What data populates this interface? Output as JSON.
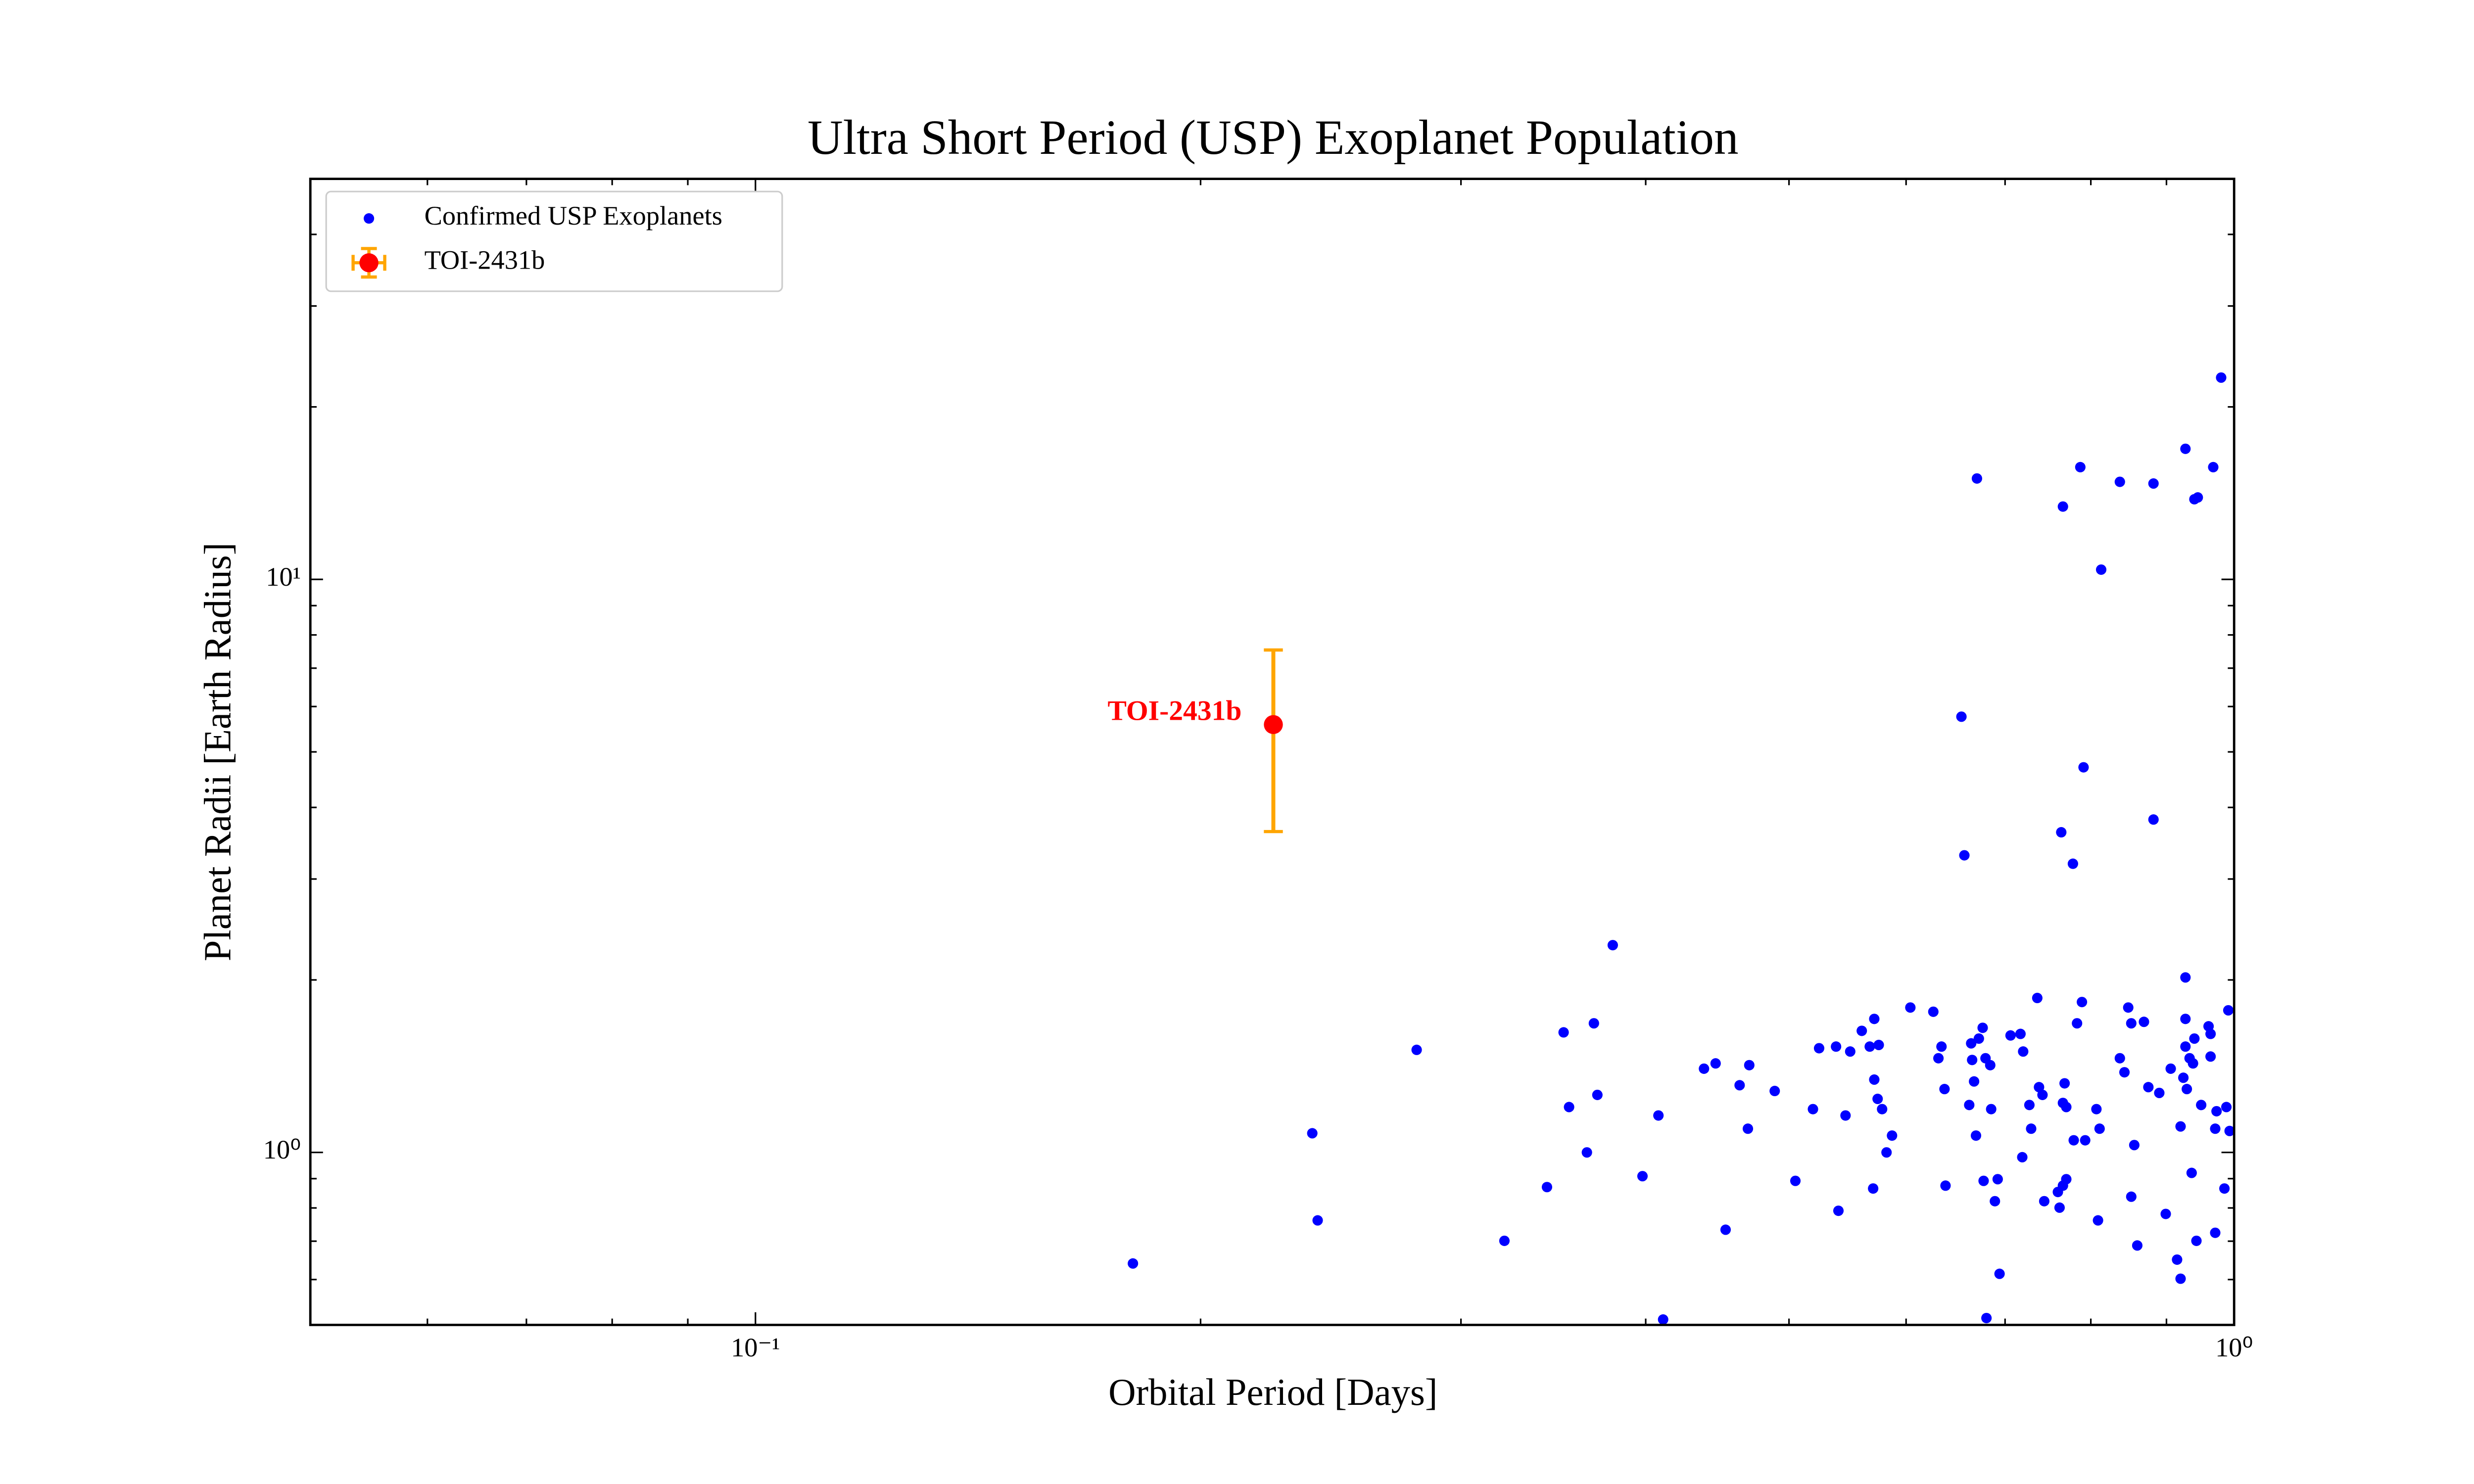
{
  "chart_data": {
    "type": "scatter",
    "title": "Ultra Short Period (USP) Exoplanet Population",
    "x_label": "Orbital Period [Days]",
    "y_label": "Planet Radii [Earth Radius]",
    "xscale": "log",
    "yscale": "log",
    "xlim": [
      0.05,
      1
    ],
    "ylim": [
      0.5,
      50
    ],
    "xticks": [
      {
        "value": 0.1,
        "label": "10⁻¹"
      },
      {
        "value": 1,
        "label": "10⁰"
      }
    ],
    "yticks": [
      {
        "value": 1,
        "label": "10⁰"
      },
      {
        "value": 10,
        "label": "10¹"
      }
    ],
    "xminorticks": [
      0.06,
      0.07,
      0.08,
      0.09,
      0.2,
      0.3,
      0.4,
      0.5,
      0.6,
      0.7,
      0.8,
      0.9
    ],
    "yminorticks": [
      0.6,
      0.7,
      0.8,
      0.9,
      2,
      3,
      4,
      5,
      6,
      7,
      8,
      9,
      20,
      30,
      40
    ],
    "legend": "upper left",
    "series": [
      {
        "name": "Confirmed USP Exoplanets",
        "color": "#0000ff",
        "x": [
          0.18,
          0.238,
          0.24,
          0.28,
          0.321,
          0.343,
          0.352,
          0.355,
          0.365,
          0.369,
          0.371,
          0.38,
          0.398,
          0.408,
          0.411,
          0.438,
          0.446,
          0.453,
          0.463,
          0.469,
          0.47,
          0.489,
          0.505,
          0.519,
          0.524,
          0.538,
          0.54,
          0.546,
          0.55,
          0.56,
          0.567,
          0.57,
          0.571,
          0.571,
          0.574,
          0.575,
          0.578,
          0.582,
          0.587,
          0.604,
          0.626,
          0.631,
          0.634,
          0.637,
          0.638,
          0.654,
          0.657,
          0.662,
          0.664,
          0.665,
          0.667,
          0.669,
          0.67,
          0.672,
          0.676,
          0.677,
          0.679,
          0.68,
          0.684,
          0.685,
          0.689,
          0.692,
          0.694,
          0.706,
          0.717,
          0.719,
          0.72,
          0.727,
          0.729,
          0.736,
          0.738,
          0.742,
          0.744,
          0.762,
          0.76,
          0.764,
          0.766,
          0.766,
          0.766,
          0.768,
          0.77,
          0.77,
          0.778,
          0.779,
          0.783,
          0.787,
          0.789,
          0.791,
          0.793,
          0.807,
          0.809,
          0.811,
          0.813,
          0.837,
          0.837,
          0.843,
          0.848,
          0.852,
          0.852,
          0.856,
          0.86,
          0.869,
          0.875,
          0.882,
          0.882,
          0.89,
          0.899,
          0.906,
          0.915,
          0.92,
          0.92,
          0.924,
          0.927,
          0.927,
          0.927,
          0.927,
          0.929,
          0.933,
          0.936,
          0.938,
          0.94,
          0.94,
          0.945,
          0.943,
          0.95,
          0.961,
          0.964,
          0.964,
          0.968,
          0.971,
          0.971,
          0.973,
          0.98,
          0.985,
          0.988,
          0.991,
          0.993
        ],
        "values": [
          0.64,
          1.08,
          0.761,
          1.51,
          0.701,
          0.87,
          1.62,
          1.2,
          1.0,
          1.68,
          1.26,
          2.3,
          0.909,
          1.16,
          0.511,
          1.4,
          1.43,
          0.733,
          1.31,
          1.1,
          1.42,
          1.28,
          0.892,
          1.19,
          1.52,
          1.53,
          0.791,
          1.16,
          1.5,
          1.63,
          1.53,
          0.865,
          1.71,
          1.34,
          1.24,
          1.54,
          1.19,
          1.0,
          1.07,
          1.79,
          1.76,
          1.46,
          1.53,
          1.29,
          0.875,
          5.76,
          3.3,
          1.21,
          1.55,
          1.45,
          1.33,
          1.07,
          15.0,
          1.58,
          1.65,
          0.892,
          1.46,
          0.514,
          1.42,
          1.19,
          0.822,
          0.898,
          0.614,
          1.6,
          1.61,
          0.981,
          1.5,
          1.21,
          1.1,
          1.86,
          1.3,
          1.26,
          0.822,
          0.801,
          0.853,
          3.62,
          13.4,
          0.875,
          1.22,
          1.32,
          1.2,
          0.898,
          3.19,
          1.05,
          1.68,
          15.7,
          1.83,
          4.7,
          1.05,
          1.19,
          0.761,
          1.1,
          10.4,
          1.46,
          14.8,
          1.38,
          1.79,
          1.68,
          0.837,
          1.03,
          0.688,
          1.69,
          1.3,
          14.7,
          3.81,
          1.27,
          0.781,
          1.4,
          0.65,
          1.11,
          0.602,
          1.35,
          16.9,
          2.02,
          1.71,
          1.53,
          1.29,
          1.46,
          0.921,
          1.43,
          13.8,
          1.58,
          13.9,
          0.701,
          1.21,
          1.66,
          1.61,
          1.47,
          15.7,
          1.1,
          0.724,
          1.18,
          22.5,
          0.865,
          1.2,
          1.77,
          1.09
        ]
      },
      {
        "name": "TOI-2431b",
        "color": "#ff0000",
        "ecolor": "#ffa500",
        "x": [
          0.224
        ],
        "values": [
          5.58
        ],
        "yerr": [
          1.95
        ]
      }
    ],
    "annotations": [
      {
        "text": "TOI-2431b",
        "color": "#ff0000"
      }
    ]
  }
}
